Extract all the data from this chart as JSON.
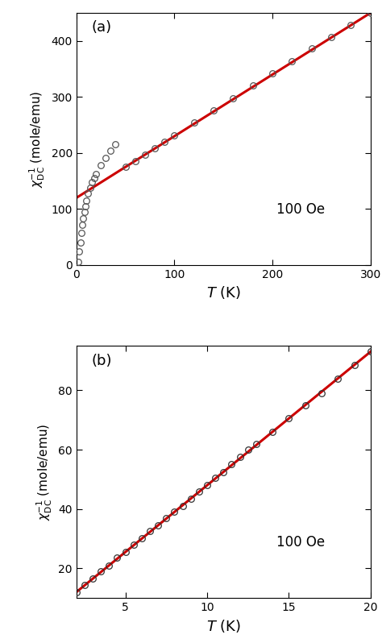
{
  "panel_a": {
    "label": "(a)",
    "xlabel": "$T$ (K)",
    "field_label": "100 Oe",
    "xlim": [
      0,
      300
    ],
    "ylim": [
      0,
      450
    ],
    "xticks": [
      0,
      100,
      200,
      300
    ],
    "yticks": [
      0,
      100,
      200,
      300,
      400
    ],
    "line_slope": 1.1,
    "line_intercept": 120.0,
    "line_xstart": 0,
    "line_xend": 300,
    "data_T": [
      2,
      3,
      4,
      5,
      6,
      7,
      8,
      9,
      10,
      12,
      14,
      16,
      18,
      20,
      25,
      30,
      35,
      40,
      50,
      60,
      70,
      80,
      90,
      100,
      120,
      140,
      160,
      180,
      200,
      220,
      240,
      260,
      280,
      300
    ],
    "data_chi": [
      5,
      25,
      40,
      58,
      72,
      84,
      95,
      105,
      115,
      128,
      138,
      148,
      155,
      163,
      178,
      191,
      204,
      215,
      175,
      185,
      197,
      208,
      220,
      231,
      254,
      276,
      298,
      320,
      342,
      364,
      386,
      407,
      429,
      450
    ],
    "line_color": "#cc0000",
    "marker_edge_color": "#555555",
    "marker_size": 5.5
  },
  "panel_b": {
    "label": "(b)",
    "xlabel": "$T$ (K)",
    "field_label": "100 Oe",
    "xlim": [
      2,
      20
    ],
    "ylim": [
      10,
      95
    ],
    "xticks": [
      5,
      10,
      15,
      20
    ],
    "yticks": [
      20,
      40,
      60,
      80
    ],
    "line_slope": 4.5,
    "line_intercept": 3.0,
    "line_xstart": 2,
    "line_xend": 20,
    "data_T": [
      2,
      2.5,
      3,
      3.5,
      4,
      4.5,
      5,
      5.5,
      6,
      6.5,
      7,
      7.5,
      8,
      8.5,
      9,
      9.5,
      10,
      10.5,
      11,
      11.5,
      12,
      12.5,
      13,
      14,
      15,
      16,
      17,
      18,
      19,
      20
    ],
    "data_chi": [
      12,
      14.5,
      16.5,
      19,
      21,
      23.5,
      25.5,
      28,
      30,
      32.5,
      34.5,
      37,
      39,
      41,
      43.5,
      46,
      48,
      50.5,
      52.5,
      55,
      57.5,
      60,
      62,
      66,
      70.5,
      75,
      79,
      84,
      88.5,
      93
    ],
    "line_color": "#cc0000",
    "marker_edge_color": "#333333",
    "marker_size": 5.5
  },
  "figure_bg": "#ffffff"
}
